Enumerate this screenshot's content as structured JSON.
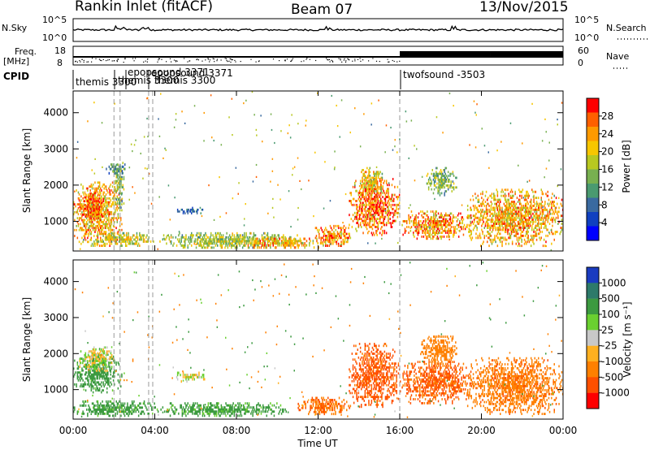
{
  "header": {
    "station": "Rankin Inlet (fitACF)",
    "beam": "Beam 07",
    "date": "13/Nov/2015"
  },
  "left_labels": {
    "nsky": "N.Sky",
    "nsky_ticks": [
      "10^5",
      "10^0"
    ],
    "freq_top": "Freq.",
    "freq_unit": "[MHz]",
    "freq_ticks": [
      "18",
      "8"
    ],
    "cpid": "CPID"
  },
  "right_labels": {
    "nsearch": "N.Search",
    "nsearch_ticks": [
      "10^5",
      "10^0"
    ],
    "nave": "Nave",
    "nave_ticks": [
      "60",
      "0"
    ]
  },
  "cpid_labels": [
    "themis 3300",
    "epopsound 3371",
    "themis 3300",
    "epopsound 3371",
    "themis 3300",
    "twofsound -3503"
  ],
  "panels": {
    "power": {
      "ylabel": "Slant Range [km]",
      "cbar_label": "Power [dB]",
      "cbar_ticks": [
        "28",
        "24",
        "20",
        "16",
        "12",
        "8",
        "4"
      ],
      "cbar_colors": [
        "#ff0000",
        "#ff6000",
        "#ff9a00",
        "#f7c600",
        "#b8c820",
        "#78b050",
        "#4a9a70",
        "#3a6aa0",
        "#1040c0",
        "#0000ff"
      ]
    },
    "velocity": {
      "ylabel": "Slant Range [km]",
      "cbar_label": "Velocity [m s⁻¹]",
      "cbar_ticks": [
        "1000",
        "500",
        "100",
        "25",
        "-25",
        "-100",
        "-500",
        "-1000"
      ],
      "cbar_colors": [
        "#1a3bc0",
        "#2d7a6a",
        "#3c9a40",
        "#6ad030",
        "#c8c8c8",
        "#ffb020",
        "#ff8000",
        "#ff5000",
        "#ff0000"
      ]
    }
  },
  "x_axis": {
    "label": "Time UT",
    "ticks": [
      "00:00",
      "04:00",
      "08:00",
      "12:00",
      "16:00",
      "20:00",
      "00:00"
    ]
  },
  "chart_data": {
    "type": "heatmap",
    "title": "Rankin Inlet (fitACF) Beam 07 13/Nov/2015",
    "xlabel": "Time UT",
    "ylabel": "Slant Range [km]",
    "xlim_hours": [
      0,
      24
    ],
    "ylim_km": [
      180,
      4600
    ],
    "y_ticks_km": [
      1000,
      2000,
      3000,
      4000
    ],
    "frequency_mhz_first_half": 11,
    "frequency_mhz_second_half": 11,
    "cpid_segments": [
      {
        "start_h": 0.0,
        "end_h": 2.0,
        "label": "themis 3300"
      },
      {
        "start_h": 2.0,
        "end_h": 2.3,
        "label": "epopsound 3371"
      },
      {
        "start_h": 2.3,
        "end_h": 3.3,
        "label": "themis 3300"
      },
      {
        "start_h": 3.3,
        "end_h": 3.9,
        "label": "epopsound 3371"
      },
      {
        "start_h": 3.9,
        "end_h": 16.0,
        "label": "themis 3300"
      },
      {
        "start_h": 16.0,
        "end_h": 24.0,
        "label": "twofsound -3503"
      }
    ],
    "power_db_blobs": [
      {
        "t0": 0.0,
        "t1": 2.4,
        "r0": 300,
        "r1": 2100,
        "db": 22
      },
      {
        "t0": 0.3,
        "t1": 1.5,
        "r0": 1000,
        "r1": 1800,
        "db": 26
      },
      {
        "t0": 2.0,
        "t1": 2.5,
        "r0": 1300,
        "r1": 2700,
        "db": 14
      },
      {
        "t0": 1.0,
        "t1": 4.0,
        "r0": 300,
        "r1": 700,
        "db": 18
      },
      {
        "t0": 4.0,
        "t1": 11.0,
        "r0": 250,
        "r1": 700,
        "db": 16
      },
      {
        "t0": 8.0,
        "t1": 12.5,
        "r0": 250,
        "r1": 550,
        "db": 22
      },
      {
        "t0": 11.8,
        "t1": 13.6,
        "r0": 300,
        "r1": 900,
        "db": 24
      },
      {
        "t0": 13.5,
        "t1": 16.0,
        "r0": 600,
        "r1": 2200,
        "db": 26
      },
      {
        "t0": 14.0,
        "t1": 15.2,
        "r0": 1700,
        "r1": 2500,
        "db": 20
      },
      {
        "t0": 16.0,
        "t1": 19.5,
        "r0": 500,
        "r1": 1300,
        "db": 24
      },
      {
        "t0": 19.3,
        "t1": 24.0,
        "r0": 300,
        "r1": 1900,
        "db": 22
      },
      {
        "t0": 17.3,
        "t1": 18.8,
        "r0": 1700,
        "r1": 2500,
        "db": 14
      },
      {
        "t0": 5.0,
        "t1": 6.5,
        "r0": 1200,
        "r1": 1400,
        "db": 8
      },
      {
        "t0": 1.6,
        "t1": 2.6,
        "r0": 2300,
        "r1": 2600,
        "db": 10
      }
    ],
    "velocity_blobs": [
      {
        "t0": 0.0,
        "t1": 2.4,
        "r0": 900,
        "r1": 2000,
        "v": 150
      },
      {
        "t0": 0.0,
        "t1": 4.0,
        "r0": 250,
        "r1": 700,
        "v": 120
      },
      {
        "t0": 4.0,
        "t1": 10.5,
        "r0": 250,
        "r1": 650,
        "v": 110
      },
      {
        "t0": 11.0,
        "t1": 13.6,
        "r0": 300,
        "r1": 800,
        "v": -300
      },
      {
        "t0": 13.5,
        "t1": 16.0,
        "r0": 500,
        "r1": 2300,
        "v": -400
      },
      {
        "t0": 16.0,
        "t1": 19.5,
        "r0": 600,
        "r1": 1800,
        "v": -350
      },
      {
        "t0": 19.3,
        "t1": 24.0,
        "r0": 300,
        "r1": 1900,
        "v": -250
      },
      {
        "t0": 17.0,
        "t1": 18.8,
        "r0": 1700,
        "r1": 2500,
        "v": -200
      },
      {
        "t0": 5.0,
        "t1": 6.5,
        "r0": 1200,
        "r1": 1500,
        "v": 0
      },
      {
        "t0": 0.3,
        "t1": 2.0,
        "r0": 1500,
        "r1": 2200,
        "v": 0
      }
    ]
  }
}
